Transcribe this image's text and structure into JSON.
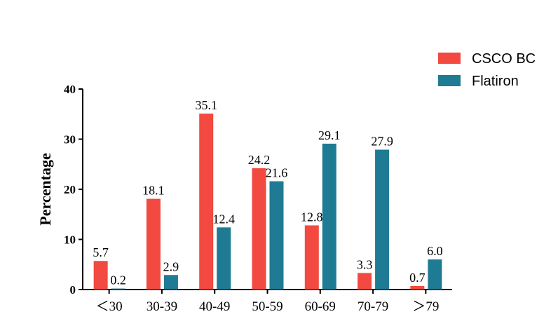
{
  "chart_data": {
    "type": "bar",
    "title": "",
    "xlabel": "",
    "ylabel": "Percentage",
    "ylim": [
      0,
      40
    ],
    "yticks": [
      0,
      10,
      20,
      30,
      40
    ],
    "categories": [
      "<30",
      "30-39",
      "40-49",
      "50-59",
      "60-69",
      "70-79",
      ">79"
    ],
    "category_labels": [
      "＜30",
      "30‑39",
      "40‑49",
      "50‑59",
      "60‑69",
      "70‑79",
      "＞79"
    ],
    "series": [
      {
        "name": "CSCO BC",
        "color": "#f24940",
        "values": [
          5.7,
          18.1,
          35.1,
          24.2,
          12.8,
          3.3,
          0.7
        ],
        "labels": [
          "5.7",
          "18.1",
          "35.1",
          "24.2",
          "12.8",
          "3.3",
          "0.7"
        ]
      },
      {
        "name": "Flatiron",
        "color": "#1f7b93",
        "values": [
          0.2,
          2.9,
          12.4,
          21.6,
          29.1,
          27.9,
          6.0
        ],
        "labels": [
          "0.2",
          "2.9",
          "12.4",
          "21.6",
          "29.1",
          "27.9",
          "6.0"
        ]
      }
    ],
    "legend": "top-right",
    "grid": false
  }
}
